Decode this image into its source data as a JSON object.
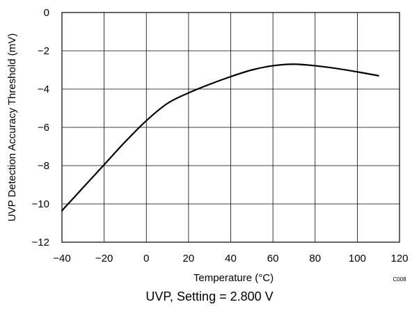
{
  "chart_data": {
    "type": "line",
    "title": "",
    "xlabel": "Temperature (°C)",
    "ylabel": "UVP Detection Accuracy Threshold (mV)",
    "xlim": [
      -40,
      120
    ],
    "ylim": [
      -12,
      0
    ],
    "x_ticks": [
      -40,
      -20,
      0,
      20,
      40,
      60,
      80,
      100,
      120
    ],
    "x_tick_labels": [
      "−40",
      "−20",
      "0",
      "20",
      "40",
      "60",
      "80",
      "100",
      "120"
    ],
    "y_ticks": [
      0,
      -2,
      -4,
      -6,
      -8,
      -10,
      -12
    ],
    "y_tick_labels": [
      "0",
      "−2",
      "−4",
      "−6",
      "−8",
      "−10",
      "−12"
    ],
    "grid": true,
    "series": [
      {
        "x": [
          -40,
          -30,
          -20,
          -10,
          0,
          10,
          20,
          30,
          40,
          50,
          60,
          70,
          80,
          90,
          100,
          110
        ],
        "y": [
          -10.35,
          -9.15,
          -7.95,
          -6.75,
          -5.65,
          -4.75,
          -4.2,
          -3.75,
          -3.35,
          -3.0,
          -2.78,
          -2.7,
          -2.78,
          -2.92,
          -3.1,
          -3.3
        ],
        "color": "#000000"
      }
    ],
    "figure_code": "C008"
  },
  "caption": "UVP, Setting = 2.800 V"
}
